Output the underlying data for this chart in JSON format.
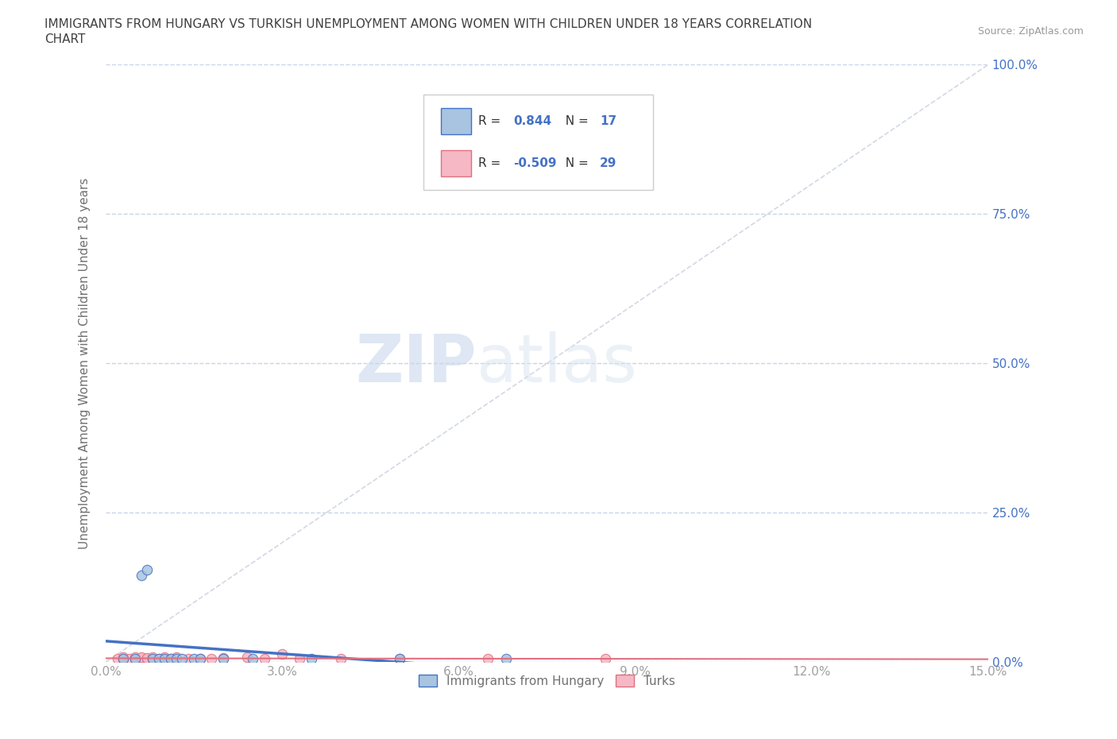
{
  "title_line1": "IMMIGRANTS FROM HUNGARY VS TURKISH UNEMPLOYMENT AMONG WOMEN WITH CHILDREN UNDER 18 YEARS CORRELATION",
  "title_line2": "CHART",
  "source_text": "Source: ZipAtlas.com",
  "ylabel": "Unemployment Among Women with Children Under 18 years",
  "xlim": [
    0.0,
    0.15
  ],
  "ylim": [
    0.0,
    1.0
  ],
  "xticks": [
    0.0,
    0.03,
    0.06,
    0.09,
    0.12,
    0.15
  ],
  "xticklabels": [
    "0.0%",
    "3.0%",
    "6.0%",
    "9.0%",
    "12.0%",
    "15.0%"
  ],
  "yticks": [
    0.0,
    0.25,
    0.5,
    0.75,
    1.0
  ],
  "yticklabels": [
    "0.0%",
    "25.0%",
    "50.0%",
    "75.0%",
    "100.0%"
  ],
  "hungary_x": [
    0.003,
    0.005,
    0.006,
    0.007,
    0.008,
    0.009,
    0.01,
    0.011,
    0.012,
    0.013,
    0.015,
    0.016,
    0.02,
    0.025,
    0.035,
    0.05,
    0.068
  ],
  "hungary_y": [
    0.005,
    0.005,
    0.145,
    0.155,
    0.005,
    0.005,
    0.005,
    0.005,
    0.005,
    0.005,
    0.005,
    0.005,
    0.005,
    0.005,
    0.005,
    0.005,
    0.005
  ],
  "turks_x": [
    0.002,
    0.003,
    0.003,
    0.004,
    0.005,
    0.005,
    0.006,
    0.006,
    0.007,
    0.007,
    0.008,
    0.008,
    0.009,
    0.01,
    0.01,
    0.011,
    0.012,
    0.014,
    0.016,
    0.018,
    0.02,
    0.024,
    0.027,
    0.03,
    0.033,
    0.04,
    0.05,
    0.065,
    0.085
  ],
  "turks_y": [
    0.005,
    0.005,
    0.008,
    0.005,
    0.005,
    0.008,
    0.005,
    0.008,
    0.005,
    0.007,
    0.005,
    0.008,
    0.005,
    0.005,
    0.008,
    0.005,
    0.008,
    0.005,
    0.005,
    0.005,
    0.007,
    0.008,
    0.005,
    0.013,
    0.005,
    0.005,
    0.005,
    0.005,
    0.005
  ],
  "hungary_color": "#a8c4e0",
  "turks_color": "#f5b8c4",
  "hungary_line_color": "#4472c4",
  "turks_line_color": "#e07080",
  "hungary_R": 0.844,
  "hungary_N": 17,
  "turks_R": -0.509,
  "turks_N": 29,
  "legend_hungary_label": "Immigrants from Hungary",
  "legend_turks_label": "Turks",
  "watermark_zip": "ZIP",
  "watermark_atlas": "atlas",
  "background_color": "#ffffff",
  "grid_color": "#c8d4e8",
  "title_color": "#404040",
  "axis_label_color": "#707070",
  "tick_color": "#a0a0a0",
  "r_value_color": "#4472c4",
  "legend_text_color": "#333333",
  "marker_size": 80,
  "marker_alpha": 0.85
}
